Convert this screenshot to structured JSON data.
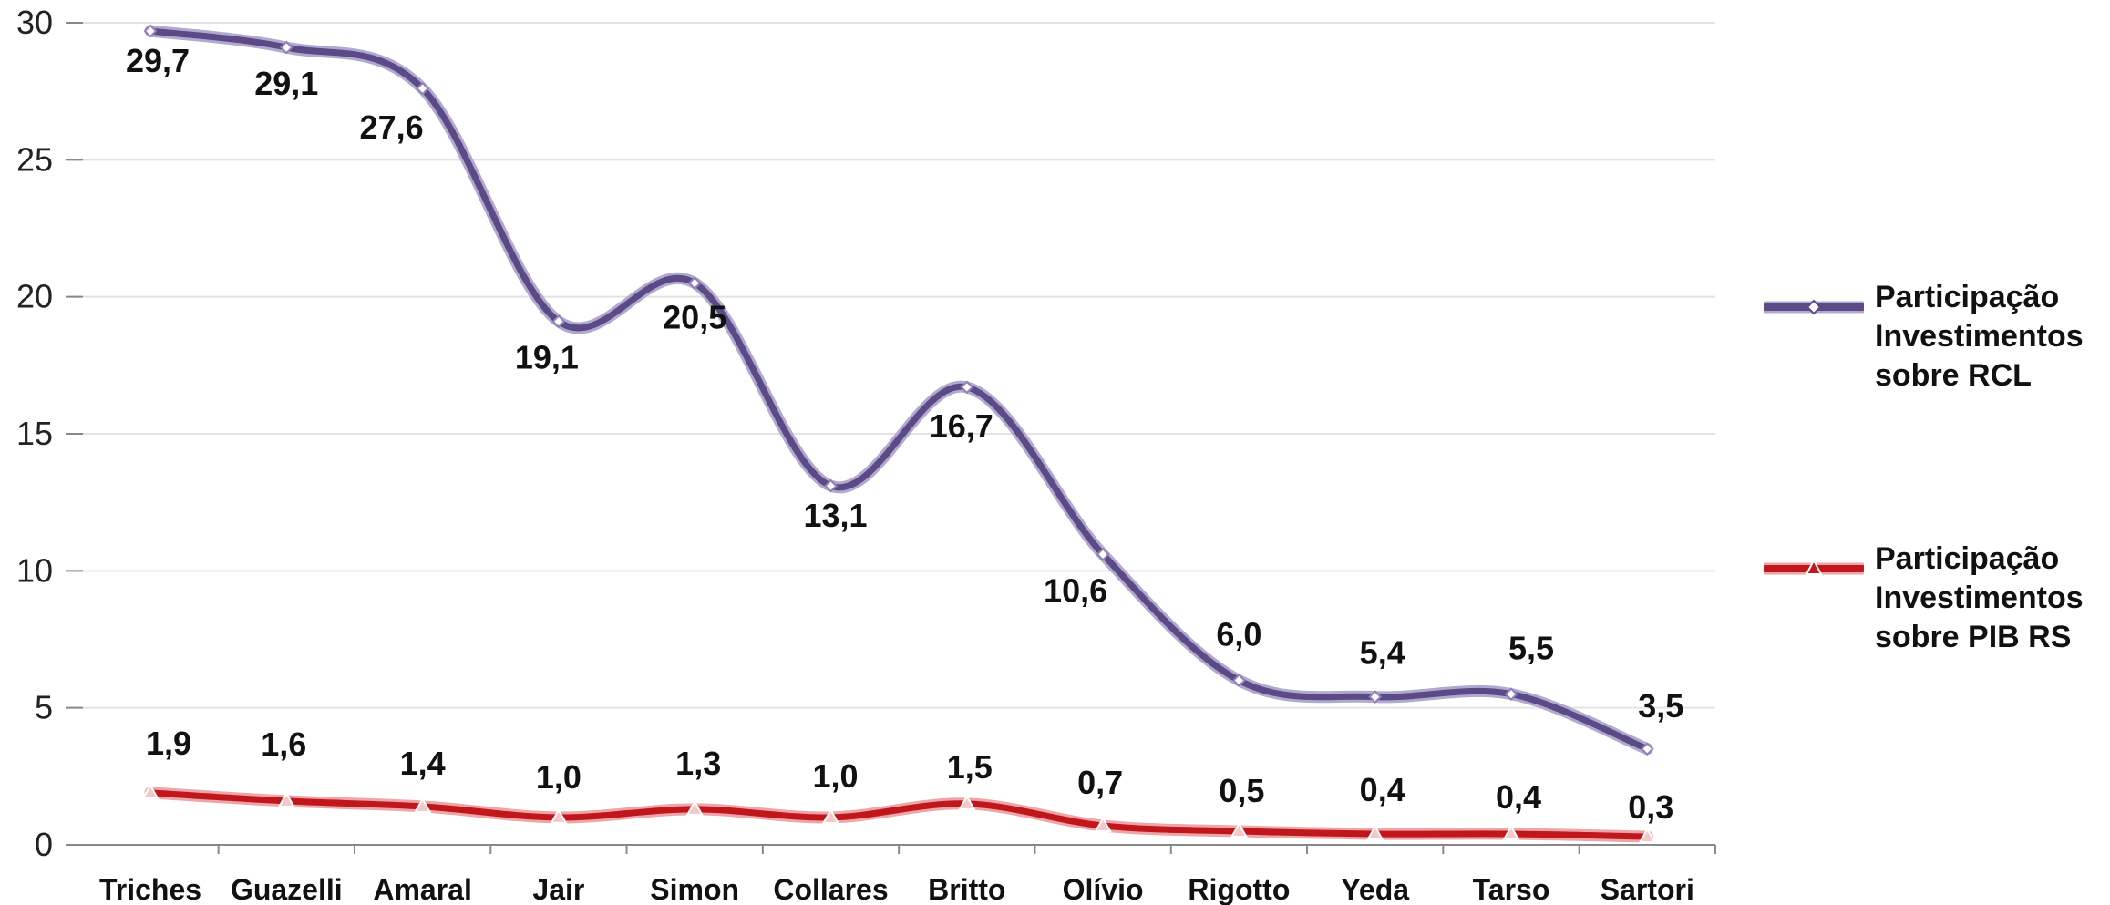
{
  "chart_data": {
    "type": "line",
    "categories": [
      "Triches",
      "Guazelli",
      "Amaral",
      "Jair",
      "Simon",
      "Collares",
      "Britto",
      "Olívio",
      "Rigotto",
      "Yeda",
      "Tarso",
      "Sartori"
    ],
    "series": [
      {
        "name": "Participação Investimentos sobre RCL",
        "color": "#5b4a85",
        "marker": "diamond",
        "values": [
          29.7,
          29.1,
          27.6,
          19.1,
          20.5,
          13.1,
          16.7,
          10.6,
          6.0,
          5.4,
          5.5,
          3.5
        ],
        "labels": [
          "29,7",
          "29,1",
          "27,6",
          "19,1",
          "20,5",
          "13,1",
          "16,7",
          "10,6",
          "6,0",
          "5,4",
          "5,5",
          "3,5"
        ]
      },
      {
        "name": "Participação Investimentos sobre PIB RS",
        "color": "#c0171d",
        "marker": "triangle",
        "values": [
          1.9,
          1.6,
          1.4,
          1.0,
          1.3,
          1.0,
          1.5,
          0.7,
          0.5,
          0.4,
          0.4,
          0.3
        ],
        "labels": [
          "1,9",
          "1,6",
          "1,4",
          "1,0",
          "1,3",
          "1,0",
          "1,5",
          "0,7",
          "0,5",
          "0,4",
          "0,4",
          "0,3"
        ]
      }
    ],
    "yticks": [
      "0",
      "5",
      "10",
      "15",
      "20",
      "25",
      "30"
    ],
    "ylim": [
      0,
      30
    ],
    "grid": true,
    "legend_position": "right"
  }
}
